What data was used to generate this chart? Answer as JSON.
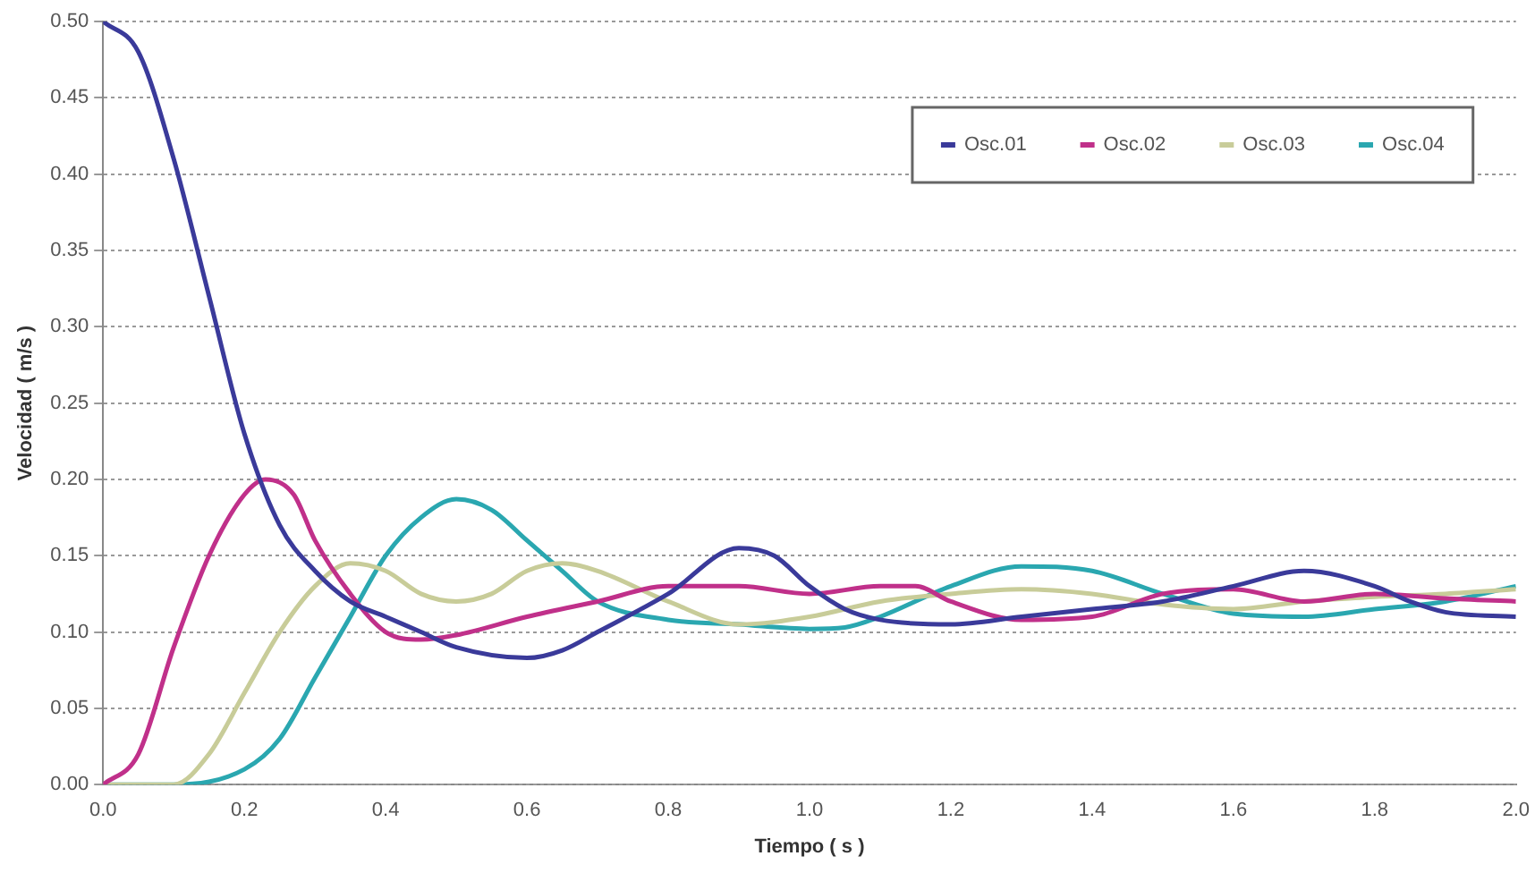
{
  "chart_data": {
    "type": "line",
    "xlabel": "Tiempo ( s )",
    "ylabel": "Velocidad ( m/s )",
    "xlim": [
      0,
      2
    ],
    "ylim": [
      0,
      0.5
    ],
    "xticks": [
      {
        "value": 0,
        "label": "0.0"
      },
      {
        "value": 0.2,
        "label": "0.2"
      },
      {
        "value": 0.4,
        "label": "0.4"
      },
      {
        "value": 0.6,
        "label": "0.6"
      },
      {
        "value": 0.8,
        "label": "0.8"
      },
      {
        "value": 1,
        "label": "1.0"
      },
      {
        "value": 1.2,
        "label": "1.2"
      },
      {
        "value": 1.4,
        "label": "1.4"
      },
      {
        "value": 1.6,
        "label": "1.6"
      },
      {
        "value": 1.8,
        "label": "1.8"
      },
      {
        "value": 2,
        "label": "2.0"
      }
    ],
    "yticks": [
      {
        "value": 0,
        "label": "0.00"
      },
      {
        "value": 0.05,
        "label": "0.05"
      },
      {
        "value": 0.1,
        "label": "0.10"
      },
      {
        "value": 0.15,
        "label": "0.15"
      },
      {
        "value": 0.2,
        "label": "0.20"
      },
      {
        "value": 0.25,
        "label": "0.25"
      },
      {
        "value": 0.3,
        "label": "0.30"
      },
      {
        "value": 0.35,
        "label": "0.35"
      },
      {
        "value": 0.4,
        "label": "0.40"
      },
      {
        "value": 0.45,
        "label": "0.45"
      },
      {
        "value": 0.5,
        "label": "0.50"
      }
    ],
    "grid": "y",
    "legend": "top right",
    "marker": "none",
    "line_style": "solid",
    "series": [
      {
        "name": "Osc.01",
        "color": "#3a3a9a",
        "x": [
          0,
          0.05,
          0.1,
          0.15,
          0.2,
          0.25,
          0.3,
          0.35,
          0.4,
          0.45,
          0.5,
          0.6,
          0.65,
          0.7,
          0.8,
          0.9,
          0.95,
          1,
          1.05,
          1.1,
          1.2,
          1.3,
          1.4,
          1.5,
          1.6,
          1.7,
          1.8,
          1.85,
          1.9,
          2
        ],
        "values": [
          0.5,
          0.48,
          0.41,
          0.32,
          0.23,
          0.17,
          0.14,
          0.12,
          0.11,
          0.1,
          0.09,
          0.083,
          0.088,
          0.1,
          0.125,
          0.155,
          0.15,
          0.13,
          0.115,
          0.108,
          0.105,
          0.11,
          0.115,
          0.12,
          0.13,
          0.14,
          0.13,
          0.12,
          0.113,
          0.11
        ]
      },
      {
        "name": "Osc.02",
        "color": "#c0308a",
        "x": [
          0,
          0.05,
          0.1,
          0.15,
          0.2,
          0.23,
          0.27,
          0.3,
          0.35,
          0.4,
          0.45,
          0.5,
          0.6,
          0.7,
          0.8,
          0.9,
          1,
          1.1,
          1.15,
          1.2,
          1.3,
          1.4,
          1.5,
          1.6,
          1.7,
          1.8,
          1.9,
          2
        ],
        "values": [
          0,
          0.02,
          0.09,
          0.15,
          0.19,
          0.2,
          0.19,
          0.16,
          0.125,
          0.1,
          0.095,
          0.098,
          0.11,
          0.12,
          0.13,
          0.13,
          0.125,
          0.13,
          0.13,
          0.12,
          0.108,
          0.11,
          0.125,
          0.128,
          0.12,
          0.125,
          0.122,
          0.12
        ]
      },
      {
        "name": "Osc.03",
        "color": "#c8cc99",
        "x": [
          0,
          0.1,
          0.15,
          0.2,
          0.25,
          0.3,
          0.35,
          0.4,
          0.45,
          0.5,
          0.55,
          0.6,
          0.65,
          0.7,
          0.8,
          0.9,
          1,
          1.1,
          1.2,
          1.3,
          1.4,
          1.5,
          1.6,
          1.7,
          1.8,
          1.9,
          2
        ],
        "values": [
          0,
          0,
          0.02,
          0.06,
          0.1,
          0.13,
          0.145,
          0.14,
          0.125,
          0.12,
          0.125,
          0.14,
          0.145,
          0.14,
          0.12,
          0.105,
          0.11,
          0.12,
          0.125,
          0.128,
          0.125,
          0.118,
          0.115,
          0.12,
          0.123,
          0.125,
          0.128
        ]
      },
      {
        "name": "Osc.04",
        "color": "#2aa7b0",
        "x": [
          0,
          0.1,
          0.2,
          0.25,
          0.3,
          0.35,
          0.4,
          0.45,
          0.5,
          0.55,
          0.6,
          0.65,
          0.7,
          0.8,
          0.9,
          1,
          1.05,
          1.1,
          1.2,
          1.3,
          1.4,
          1.5,
          1.6,
          1.7,
          1.8,
          1.9,
          2
        ],
        "values": [
          0,
          0,
          0.01,
          0.03,
          0.07,
          0.11,
          0.15,
          0.175,
          0.187,
          0.18,
          0.16,
          0.14,
          0.12,
          0.108,
          0.105,
          0.102,
          0.103,
          0.11,
          0.13,
          0.143,
          0.14,
          0.125,
          0.112,
          0.11,
          0.115,
          0.12,
          0.13
        ]
      }
    ]
  }
}
